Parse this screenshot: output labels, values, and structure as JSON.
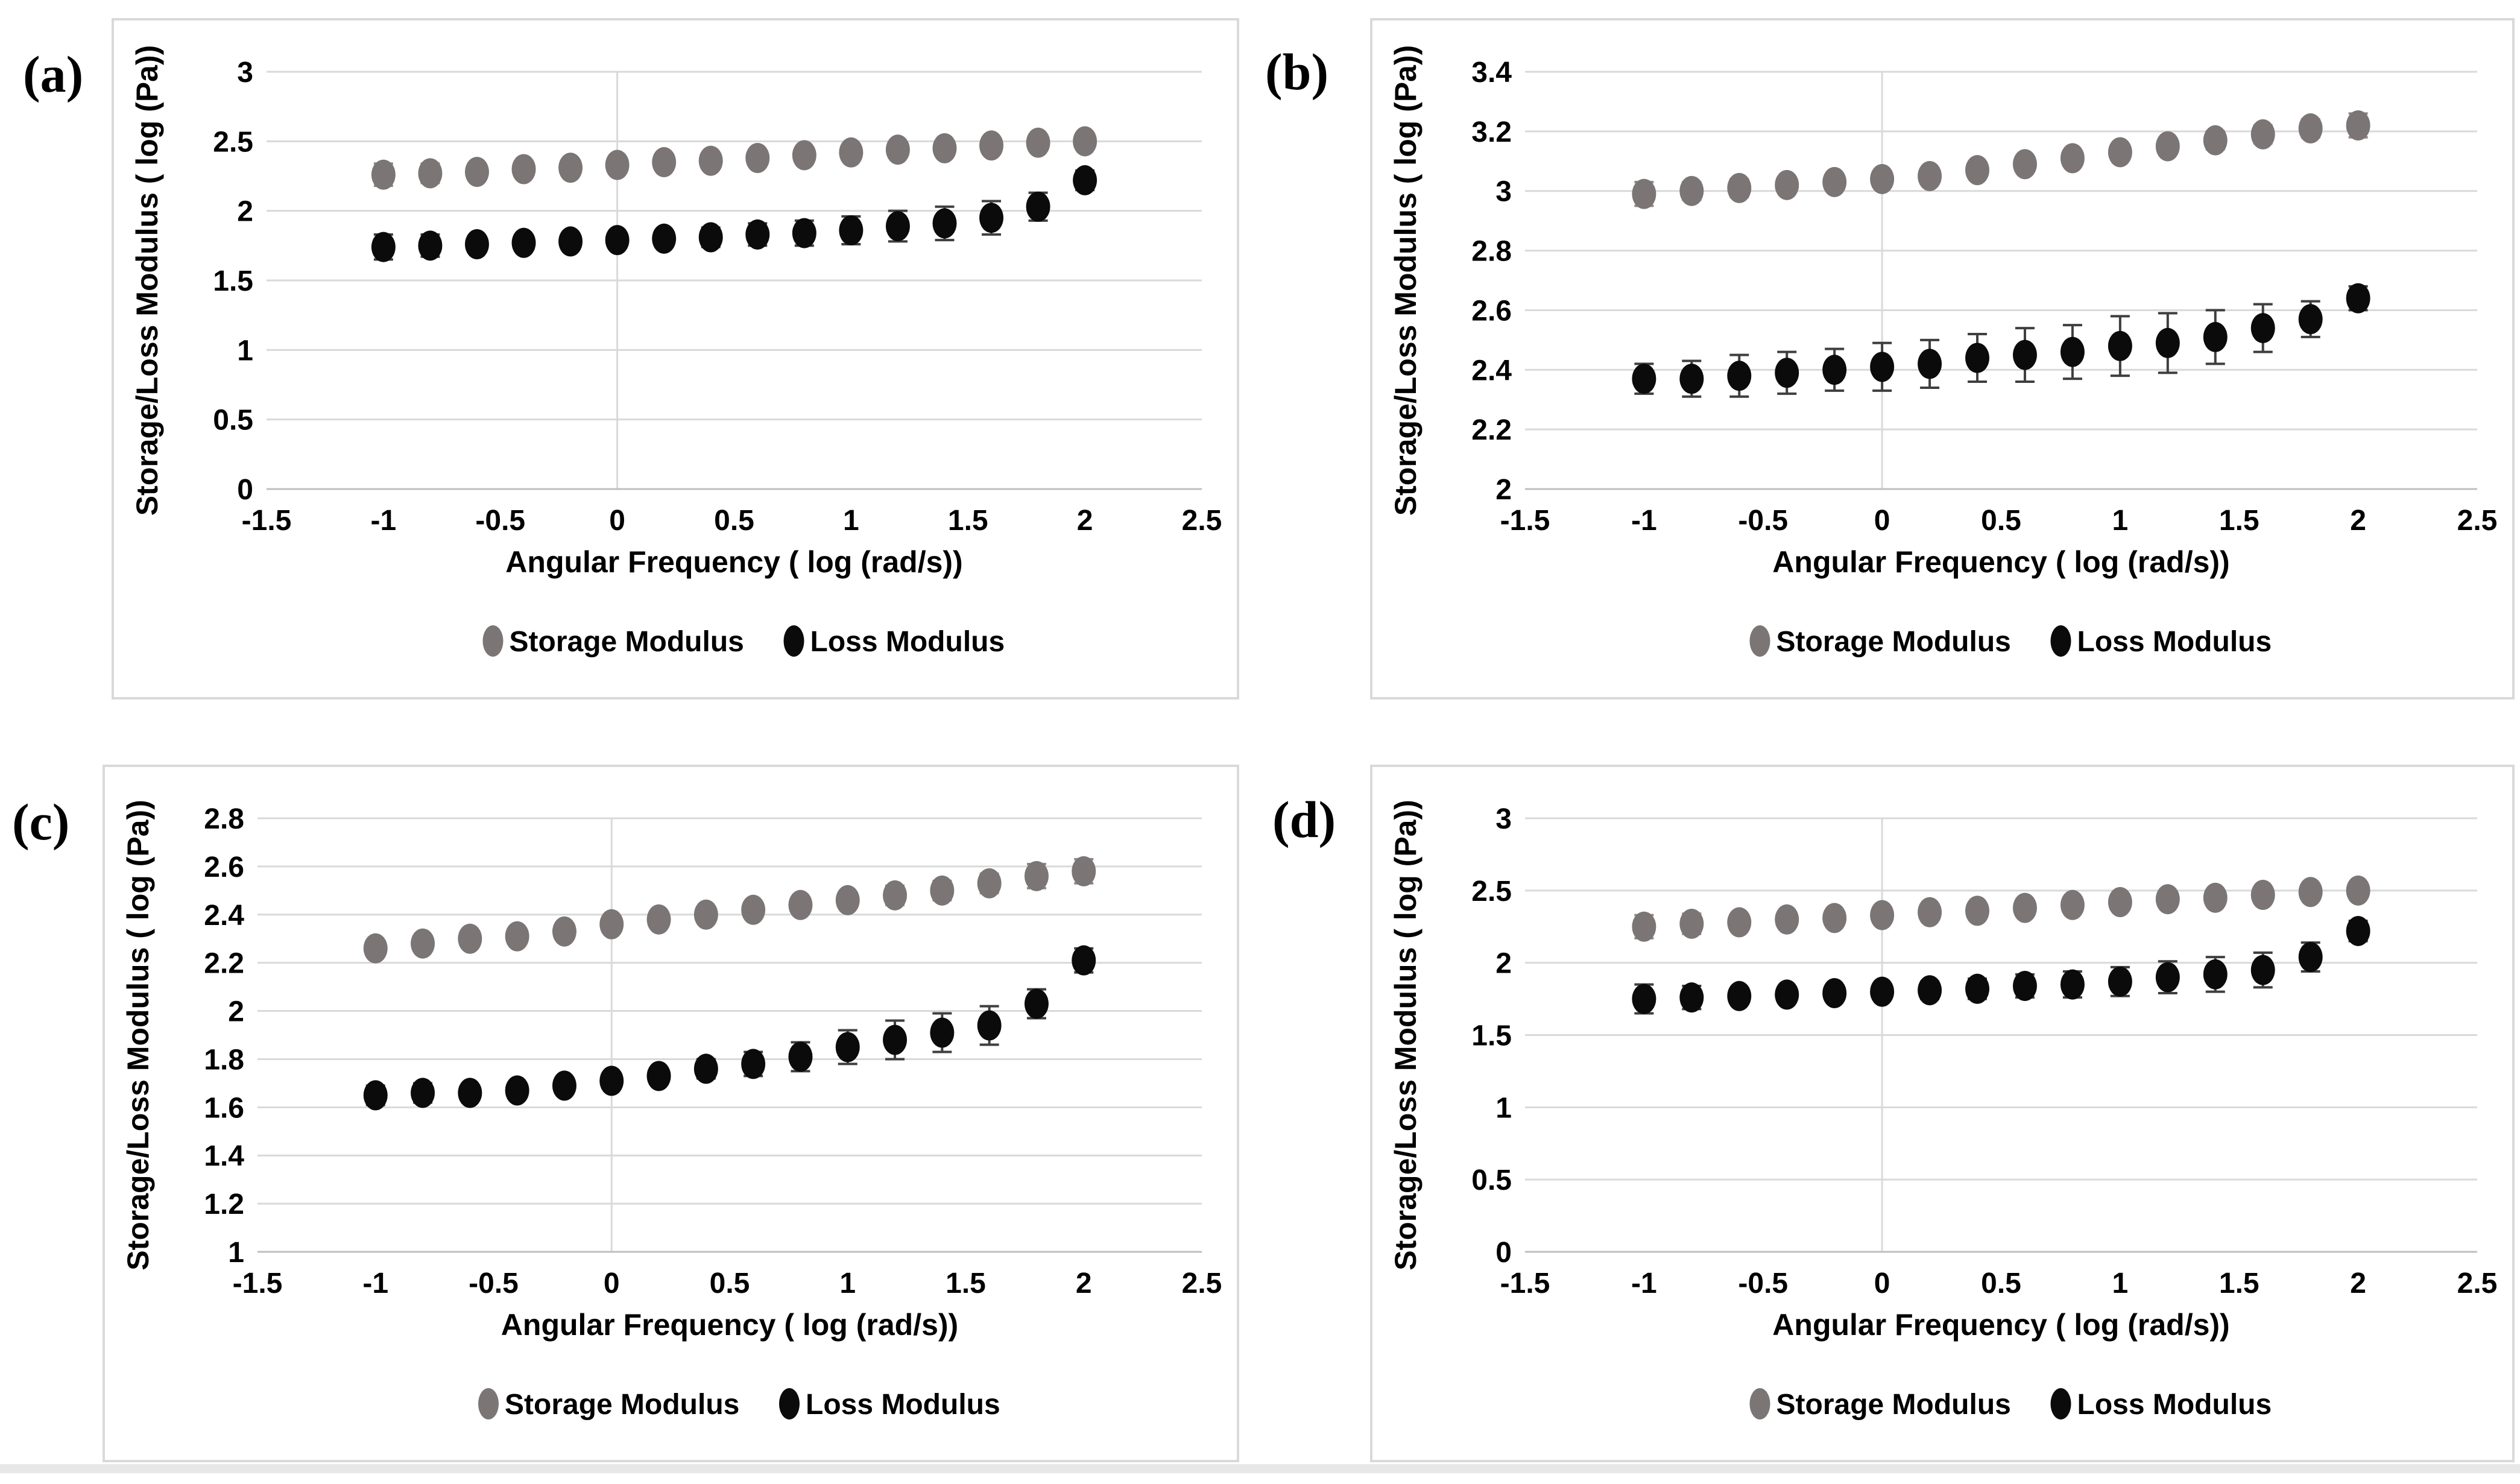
{
  "figure": {
    "background": "#ffffff",
    "border_color": "#d9d9d9",
    "grid_color": "#d9d9d9",
    "axis_line_color": "#bfbfbf",
    "storage_color": "#7b7575",
    "loss_color": "#0b0b0b",
    "storage_error_color": "#8f8a8a",
    "loss_error_color": "#3f3f3f",
    "text_color": "#000000"
  },
  "chart_data": [
    {
      "panel_label": "(a)",
      "type": "scatter",
      "title": "",
      "xlabel": "Angular Frequency ( log (rad/s))",
      "ylabel": "Storage/Loss Modulus ( log (Pa))",
      "x": [
        -1,
        -0.8,
        -0.6,
        -0.4,
        -0.2,
        0,
        0.2,
        0.4,
        0.6,
        0.8,
        1,
        1.2,
        1.4,
        1.6,
        1.8,
        2
      ],
      "xlim": [
        -1.5,
        2.5
      ],
      "x_ticks": [
        -1.5,
        -1,
        -0.5,
        0,
        0.5,
        1,
        1.5,
        2,
        2.5
      ],
      "ylim": [
        0,
        3
      ],
      "y_ticks": [
        3,
        2.5,
        2,
        1.5,
        1,
        0.5,
        0
      ],
      "grid": "horizontal gridlines + vertical line at x=0",
      "legend_position": "bottom",
      "series": [
        {
          "name": "Storage Modulus",
          "values": [
            2.26,
            2.27,
            2.28,
            2.3,
            2.31,
            2.33,
            2.35,
            2.36,
            2.38,
            2.4,
            2.42,
            2.44,
            2.45,
            2.47,
            2.49,
            2.5
          ],
          "errors": [
            0.08,
            0.07,
            0.04,
            0.03,
            0.02,
            0.02,
            0.02,
            0.02,
            0.02,
            0.02,
            0.03,
            0.03,
            0.03,
            0.04,
            0.05,
            0.05
          ]
        },
        {
          "name": "Loss Modulus",
          "values": [
            1.74,
            1.75,
            1.76,
            1.77,
            1.78,
            1.79,
            1.8,
            1.81,
            1.83,
            1.84,
            1.86,
            1.89,
            1.91,
            1.95,
            2.03,
            2.22
          ],
          "errors": [
            0.09,
            0.08,
            0.05,
            0.04,
            0.04,
            0.05,
            0.06,
            0.07,
            0.08,
            0.09,
            0.1,
            0.11,
            0.12,
            0.12,
            0.1,
            0.07
          ]
        }
      ]
    },
    {
      "panel_label": "(b)",
      "type": "scatter",
      "title": "",
      "xlabel": "Angular Frequency ( log (rad/s))",
      "ylabel": "Storage/Loss Modulus ( log (Pa))",
      "x": [
        -1,
        -0.8,
        -0.6,
        -0.4,
        -0.2,
        0,
        0.2,
        0.4,
        0.6,
        0.8,
        1,
        1.2,
        1.4,
        1.6,
        1.8,
        2
      ],
      "xlim": [
        -1.5,
        2.5
      ],
      "x_ticks": [
        -1.5,
        -1,
        -0.5,
        0,
        0.5,
        1,
        1.5,
        2,
        2.5
      ],
      "ylim": [
        2,
        3.4
      ],
      "y_ticks": [
        3.4,
        3.2,
        3,
        2.8,
        2.6,
        2.4,
        2.2,
        2
      ],
      "grid": "horizontal gridlines + vertical line at x=0",
      "legend_position": "bottom",
      "series": [
        {
          "name": "Storage Modulus",
          "values": [
            2.99,
            3.0,
            3.01,
            3.02,
            3.03,
            3.04,
            3.05,
            3.07,
            3.09,
            3.11,
            3.13,
            3.15,
            3.17,
            3.19,
            3.21,
            3.22
          ],
          "errors": [
            0.04,
            0.03,
            0.03,
            0.02,
            0.02,
            0.02,
            0.02,
            0.02,
            0.02,
            0.02,
            0.02,
            0.02,
            0.03,
            0.03,
            0.03,
            0.04
          ]
        },
        {
          "name": "Loss Modulus",
          "values": [
            2.37,
            2.37,
            2.38,
            2.39,
            2.4,
            2.41,
            2.42,
            2.44,
            2.45,
            2.46,
            2.48,
            2.49,
            2.51,
            2.54,
            2.57,
            2.64
          ],
          "errors": [
            0.05,
            0.06,
            0.07,
            0.07,
            0.07,
            0.08,
            0.08,
            0.08,
            0.09,
            0.09,
            0.1,
            0.1,
            0.09,
            0.08,
            0.06,
            0.04
          ]
        }
      ]
    },
    {
      "panel_label": "(c)",
      "type": "scatter",
      "title": "",
      "xlabel": "Angular Frequency ( log (rad/s))",
      "ylabel": "Storage/Loss Modulus ( log (Pa))",
      "x": [
        -1,
        -0.8,
        -0.6,
        -0.4,
        -0.2,
        0,
        0.2,
        0.4,
        0.6,
        0.8,
        1,
        1.2,
        1.4,
        1.6,
        1.8,
        2
      ],
      "xlim": [
        -1.5,
        2.5
      ],
      "x_ticks": [
        -1.5,
        -1,
        -0.5,
        0,
        0.5,
        1,
        1.5,
        2,
        2.5
      ],
      "ylim": [
        1,
        2.8
      ],
      "y_ticks": [
        2.8,
        2.6,
        2.4,
        2.2,
        2,
        1.8,
        1.6,
        1.4,
        1.2,
        1
      ],
      "grid": "horizontal gridlines + vertical line at x=0",
      "legend_position": "bottom",
      "series": [
        {
          "name": "Storage Modulus",
          "values": [
            2.26,
            2.28,
            2.3,
            2.31,
            2.33,
            2.36,
            2.38,
            2.4,
            2.42,
            2.44,
            2.46,
            2.48,
            2.5,
            2.53,
            2.56,
            2.58
          ],
          "errors": [
            0.02,
            0.02,
            0.02,
            0.02,
            0.02,
            0.02,
            0.02,
            0.02,
            0.02,
            0.03,
            0.03,
            0.04,
            0.04,
            0.04,
            0.05,
            0.05
          ]
        },
        {
          "name": "Loss Modulus",
          "values": [
            1.65,
            1.66,
            1.66,
            1.67,
            1.69,
            1.71,
            1.73,
            1.76,
            1.78,
            1.81,
            1.85,
            1.88,
            1.91,
            1.94,
            2.03,
            2.21
          ],
          "errors": [
            0.04,
            0.04,
            0.03,
            0.03,
            0.03,
            0.03,
            0.03,
            0.04,
            0.05,
            0.06,
            0.07,
            0.08,
            0.08,
            0.08,
            0.06,
            0.05
          ]
        }
      ]
    },
    {
      "panel_label": "(d)",
      "type": "scatter",
      "title": "",
      "xlabel": "Angular Frequency ( log (rad/s))",
      "ylabel": "Storage/Loss Modulus ( log (Pa))",
      "x": [
        -1,
        -0.8,
        -0.6,
        -0.4,
        -0.2,
        0,
        0.2,
        0.4,
        0.6,
        0.8,
        1,
        1.2,
        1.4,
        1.6,
        1.8,
        2
      ],
      "xlim": [
        -1.5,
        2.5
      ],
      "x_ticks": [
        -1.5,
        -1,
        -0.5,
        0,
        0.5,
        1,
        1.5,
        2,
        2.5
      ],
      "ylim": [
        0,
        3
      ],
      "y_ticks": [
        3,
        2.5,
        2,
        1.5,
        1,
        0.5,
        0
      ],
      "grid": "horizontal gridlines + vertical line at x=0",
      "legend_position": "bottom",
      "series": [
        {
          "name": "Storage Modulus",
          "values": [
            2.25,
            2.27,
            2.28,
            2.3,
            2.31,
            2.33,
            2.35,
            2.36,
            2.38,
            2.4,
            2.42,
            2.44,
            2.45,
            2.47,
            2.49,
            2.5
          ],
          "errors": [
            0.08,
            0.07,
            0.04,
            0.03,
            0.02,
            0.02,
            0.02,
            0.02,
            0.02,
            0.02,
            0.03,
            0.03,
            0.03,
            0.04,
            0.05,
            0.05
          ]
        },
        {
          "name": "Loss Modulus",
          "values": [
            1.75,
            1.76,
            1.77,
            1.78,
            1.79,
            1.8,
            1.81,
            1.82,
            1.84,
            1.85,
            1.87,
            1.9,
            1.92,
            1.95,
            2.04,
            2.22
          ],
          "errors": [
            0.1,
            0.08,
            0.05,
            0.04,
            0.04,
            0.05,
            0.06,
            0.07,
            0.08,
            0.09,
            0.1,
            0.11,
            0.12,
            0.12,
            0.1,
            0.07
          ]
        }
      ]
    }
  ]
}
